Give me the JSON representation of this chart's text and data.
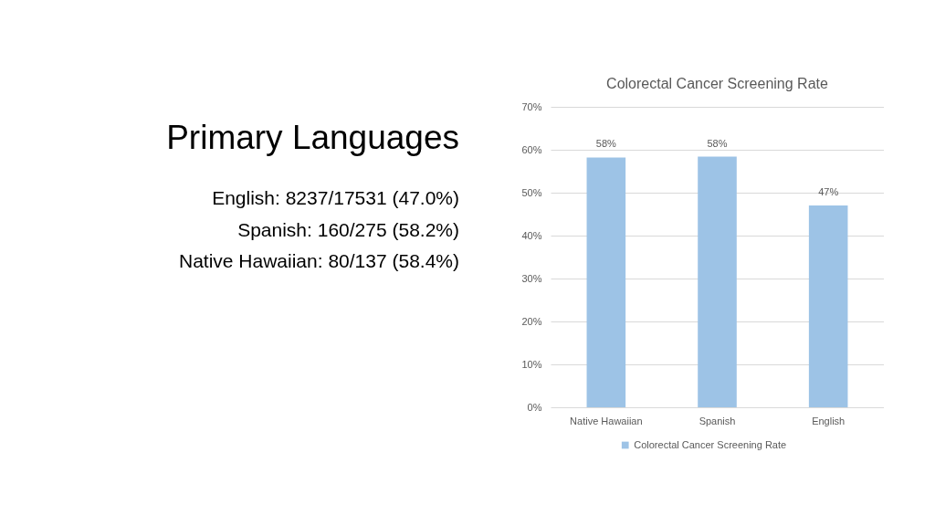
{
  "chart_data": [
    {
      "type": "other",
      "title": "Primary Languages",
      "annotations": [
        "English: 8237/17531 (47.0%)",
        "Spanish: 160/275 (58.2%)",
        "Native Hawaiian: 80/137 (58.4%)"
      ]
    },
    {
      "type": "bar",
      "title": "Colorectal Cancer Screening Rate",
      "categories": [
        "Native Hawaiian",
        "Spanish",
        "English"
      ],
      "series": [
        {
          "name": "Colorectal Cancer Screening Rate",
          "color": "#9dc3e6",
          "values": [
            58.2,
            58.4,
            47.0
          ],
          "value_labels": [
            "58%",
            "58%",
            "47%"
          ]
        }
      ],
      "ylim": [
        0,
        70
      ],
      "yticks": [
        {
          "value": 0,
          "label": "0%"
        },
        {
          "value": 10,
          "label": "10%"
        },
        {
          "value": 20,
          "label": "20%"
        },
        {
          "value": 30,
          "label": "30%"
        },
        {
          "value": 40,
          "label": "40%"
        },
        {
          "value": 50,
          "label": "50%"
        },
        {
          "value": 60,
          "label": "60%"
        },
        {
          "value": 70,
          "label": "70%"
        }
      ],
      "grid": "y",
      "legend": "bottom"
    }
  ]
}
